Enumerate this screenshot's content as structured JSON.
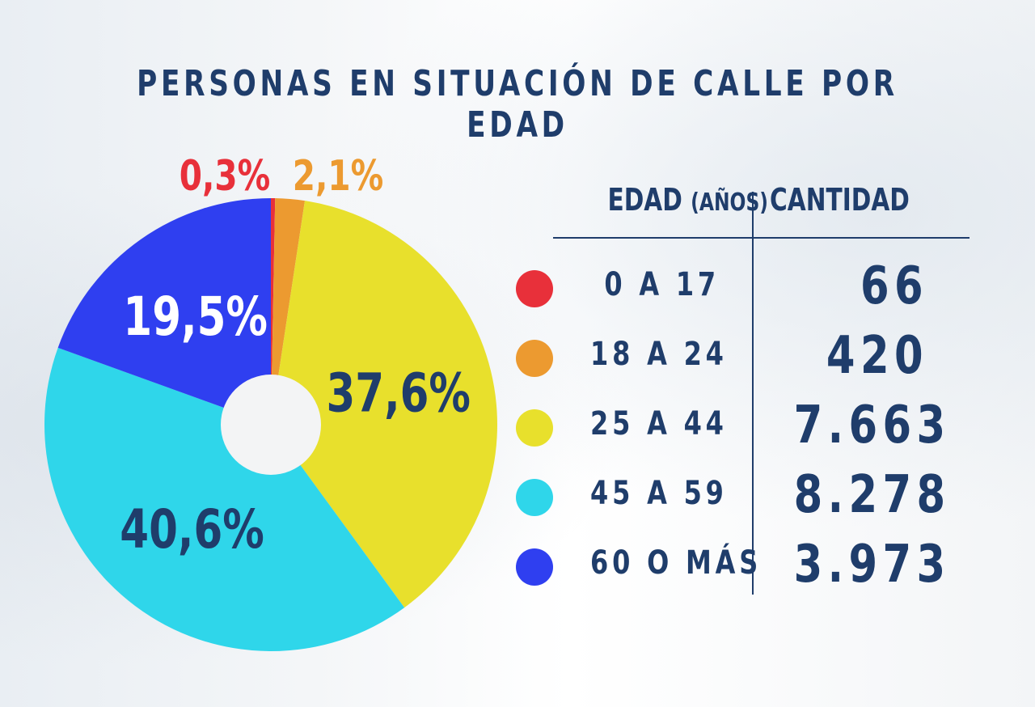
{
  "title": "PERSONAS EN SITUACIÓN DE CALLE POR EDAD",
  "table": {
    "header_age": "EDAD",
    "header_age_unit": "(AÑOS)",
    "header_qty": "CANTIDAD",
    "rows": [
      {
        "age": "0 A 17",
        "qty": "66",
        "color": "#e8303a"
      },
      {
        "age": "18 A 24",
        "qty": "420",
        "color": "#ec9a30"
      },
      {
        "age": "25 A 44",
        "qty": "7.663",
        "color": "#e8e02c"
      },
      {
        "age": "45 A 59",
        "qty": "8.278",
        "color": "#2fd6ea"
      },
      {
        "age": "60 O MÁS",
        "qty": "3.973",
        "color": "#2f3ff0"
      }
    ]
  },
  "chart_data": {
    "type": "pie",
    "title": "PERSONAS EN SITUACIÓN DE CALLE POR EDAD",
    "categories": [
      "0 A 17",
      "18 A 24",
      "25 A 44",
      "45 A 59",
      "60 O MÁS"
    ],
    "values": [
      0.3,
      2.1,
      37.6,
      40.6,
      19.5
    ],
    "labels": [
      "0,3%",
      "2,1%",
      "37,6%",
      "40,6%",
      "19,5%"
    ],
    "counts": [
      66,
      420,
      7663,
      8278,
      3973
    ],
    "colors": [
      "#e8303a",
      "#ec9a30",
      "#e8e02c",
      "#2fd6ea",
      "#2f3ff0"
    ],
    "label_colors": [
      "#e8303a",
      "#ec9a30",
      "#1f3d6b",
      "#1f3d6b",
      "#ffffff"
    ],
    "donut_hole": true
  }
}
